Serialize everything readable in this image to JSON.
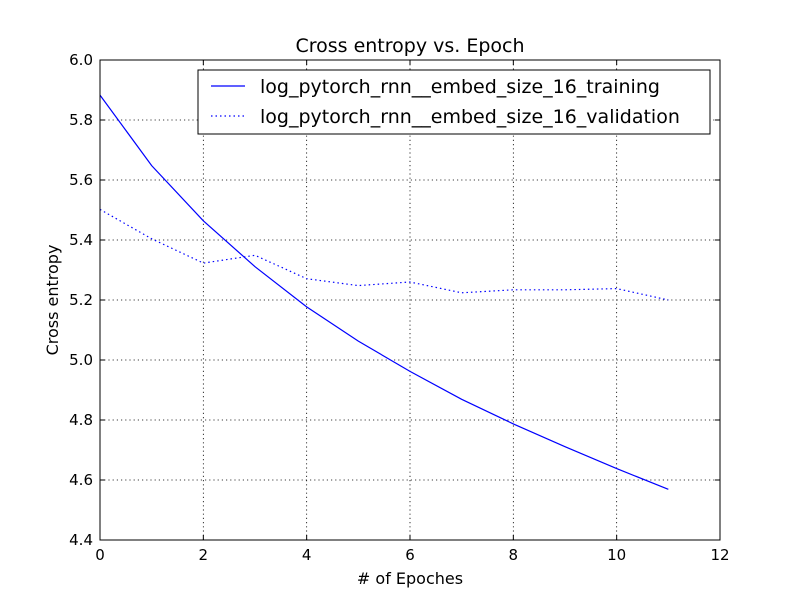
{
  "chart_data": {
    "type": "line",
    "title": "Cross entropy vs. Epoch",
    "xlabel": "# of Epoches",
    "ylabel": "Cross entropy",
    "xlim": [
      0,
      12
    ],
    "ylim": [
      4.4,
      6.0
    ],
    "xticks": [
      0,
      2,
      4,
      6,
      8,
      10,
      12
    ],
    "yticks": [
      4.4,
      4.6,
      4.8,
      5.0,
      5.2,
      5.4,
      5.6,
      5.8,
      6.0
    ],
    "grid": true,
    "legend_position": "top-right",
    "series": [
      {
        "name": "log_pytorch_rnn__embed_size_16_training",
        "style": "solid",
        "color": "#0000ff",
        "x": [
          0,
          1,
          2,
          3,
          4,
          5,
          6,
          7,
          8,
          9,
          10,
          11
        ],
        "values": [
          5.883,
          5.648,
          5.464,
          5.311,
          5.177,
          5.063,
          4.962,
          4.869,
          4.787,
          4.711,
          4.638,
          4.569
        ]
      },
      {
        "name": "log_pytorch_rnn__embed_size_16_validation",
        "style": "dotted",
        "color": "#0000ff",
        "x": [
          0,
          1,
          2,
          3,
          4,
          5,
          6,
          7,
          8,
          9,
          10,
          11
        ],
        "values": [
          5.502,
          5.404,
          5.323,
          5.349,
          5.271,
          5.248,
          5.26,
          5.224,
          5.234,
          5.234,
          5.238,
          5.2
        ]
      }
    ]
  }
}
